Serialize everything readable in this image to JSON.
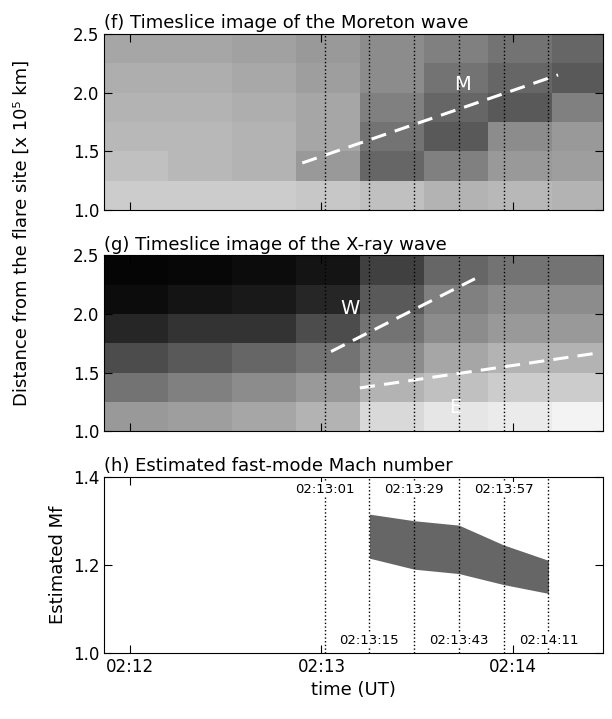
{
  "chart_data": [
    {
      "type": "heatmap",
      "title": "(f) Timeslice image of the Moreton wave",
      "ylabel": "Distance from the flare site [x 10⁵ km]",
      "xlim": [
        712,
        868
      ],
      "xticks": [
        {
          "value": 720,
          "label": "02:12"
        },
        {
          "value": 780,
          "label": "02:13"
        },
        {
          "value": 840,
          "label": "02:14"
        }
      ],
      "ylim": [
        1.0,
        2.5
      ],
      "yticks": [
        {
          "value": 1.0,
          "label": "1.0"
        },
        {
          "value": 1.5,
          "label": "1.5"
        },
        {
          "value": 2.0,
          "label": "2.0"
        },
        {
          "value": 2.5,
          "label": "2.5"
        }
      ],
      "tick_labels": "y",
      "x_edges": [
        712,
        732,
        752,
        772,
        792,
        812,
        832,
        852,
        868
      ],
      "y_edges": [
        1.0,
        1.25,
        1.5,
        1.75,
        2.0,
        2.25,
        2.5
      ],
      "zlim": [
        0,
        1
      ],
      "cells": [
        [
          0.8,
          0.8,
          0.8,
          0.78,
          0.75,
          0.7,
          0.72,
          0.7
        ],
        [
          0.75,
          0.72,
          0.7,
          0.6,
          0.4,
          0.5,
          0.6,
          0.62
        ],
        [
          0.72,
          0.72,
          0.7,
          0.65,
          0.45,
          0.35,
          0.55,
          0.6
        ],
        [
          0.7,
          0.7,
          0.68,
          0.65,
          0.5,
          0.4,
          0.35,
          0.5
        ],
        [
          0.68,
          0.68,
          0.66,
          0.62,
          0.55,
          0.45,
          0.4,
          0.35
        ],
        [
          0.65,
          0.65,
          0.63,
          0.6,
          0.55,
          0.5,
          0.45,
          0.4
        ]
      ],
      "lines": [
        {
          "name": "M",
          "x": [
            774,
            854
          ],
          "y": [
            1.4,
            2.15
          ],
          "label_x": 824,
          "label_y": 2.07
        }
      ],
      "vlines": [
        781,
        795,
        809,
        823,
        837,
        851
      ]
    },
    {
      "type": "heatmap",
      "title": "(g) Timeslice image of the X-ray wave",
      "xlim": [
        712,
        868
      ],
      "xticks": [
        {
          "value": 720,
          "label": "02:12"
        },
        {
          "value": 780,
          "label": "02:13"
        },
        {
          "value": 840,
          "label": "02:14"
        }
      ],
      "ylim": [
        1.0,
        2.5
      ],
      "yticks": [
        {
          "value": 1.0,
          "label": "1.0"
        },
        {
          "value": 1.5,
          "label": "1.5"
        },
        {
          "value": 2.0,
          "label": "2.0"
        },
        {
          "value": 2.5,
          "label": "2.5"
        }
      ],
      "tick_labels": "y",
      "x_edges": [
        712,
        732,
        752,
        772,
        792,
        812,
        832,
        852,
        868
      ],
      "y_edges": [
        1.0,
        1.25,
        1.5,
        1.75,
        2.0,
        2.25,
        2.5
      ],
      "zlim": [
        0,
        1
      ],
      "cells": [
        [
          0.6,
          0.62,
          0.65,
          0.7,
          0.85,
          0.9,
          0.92,
          0.95
        ],
        [
          0.45,
          0.5,
          0.55,
          0.6,
          0.7,
          0.75,
          0.8,
          0.8
        ],
        [
          0.3,
          0.35,
          0.4,
          0.45,
          0.55,
          0.65,
          0.7,
          0.7
        ],
        [
          0.15,
          0.2,
          0.2,
          0.3,
          0.45,
          0.55,
          0.6,
          0.6
        ],
        [
          0.05,
          0.08,
          0.1,
          0.15,
          0.35,
          0.5,
          0.55,
          0.55
        ],
        [
          0.02,
          0.03,
          0.05,
          0.08,
          0.25,
          0.4,
          0.45,
          0.45
        ]
      ],
      "lines": [
        {
          "name": "W",
          "x": [
            783,
            828
          ],
          "y": [
            1.68,
            2.3
          ],
          "label_x": 789,
          "label_y": 2.05
        },
        {
          "name": "E",
          "x": [
            792,
            867
          ],
          "y": [
            1.37,
            1.67
          ],
          "label_x": 822,
          "label_y": 1.2
        }
      ],
      "vlines": [
        781,
        795,
        809,
        823,
        837,
        851
      ]
    },
    {
      "type": "area",
      "title": "(h) Estimated fast-mode Mach number",
      "ylabel": "Estimated Mf",
      "xlabel": "time (UT)",
      "xlim": [
        712,
        868
      ],
      "xticks": [
        {
          "value": 720,
          "label": "02:12"
        },
        {
          "value": 780,
          "label": "02:13"
        },
        {
          "value": 840,
          "label": "02:14"
        }
      ],
      "ylim": [
        1.0,
        1.4
      ],
      "yticks": [
        {
          "value": 1.0,
          "label": "1.0"
        },
        {
          "value": 1.2,
          "label": "1.2"
        },
        {
          "value": 1.4,
          "label": "1.4"
        }
      ],
      "x": [
        795,
        809,
        823,
        837,
        851
      ],
      "upper": [
        1.315,
        1.3,
        1.29,
        1.245,
        1.21
      ],
      "lower": [
        1.215,
        1.19,
        1.18,
        1.155,
        1.135
      ],
      "color": "#666666",
      "vlines": [
        {
          "value": 781,
          "label": "02:13:01"
        },
        {
          "value": 795,
          "label": "02:13:15"
        },
        {
          "value": 809,
          "label": "02:13:29"
        },
        {
          "value": 823,
          "label": "02:13:43"
        },
        {
          "value": 837,
          "label": "02:13:57"
        },
        {
          "value": 851,
          "label": "02:14:11"
        }
      ]
    }
  ]
}
